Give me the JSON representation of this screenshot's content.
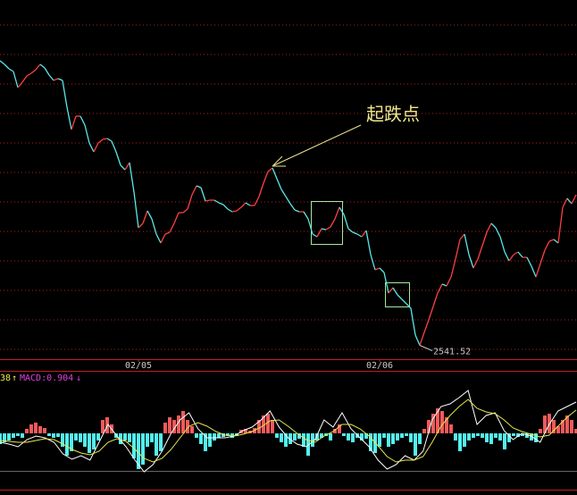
{
  "chart_data": [
    {
      "type": "line",
      "annotation": "起跌点",
      "low_label": "2541.52",
      "up_color": "#ff4040",
      "down_color": "#5ae8e8",
      "ylim": [
        2526,
        2928
      ],
      "xlim": [
        0,
        129
      ],
      "xticks": [
        {
          "value": 31,
          "label": "02/05"
        },
        {
          "value": 85,
          "label": "02/06"
        }
      ],
      "series": [
        {
          "values": [
            2860,
            2856,
            2851,
            2848,
            2830,
            2836,
            2843,
            2846,
            2850,
            2856,
            2852,
            2844,
            2838,
            2840,
            2838,
            2808,
            2783,
            2798,
            2798,
            2788,
            2768,
            2758,
            2768,
            2772,
            2773,
            2770,
            2758,
            2743,
            2738,
            2746,
            2713,
            2673,
            2678,
            2692,
            2683,
            2666,
            2656,
            2666,
            2668,
            2678,
            2690,
            2690,
            2694,
            2710,
            2720,
            2718,
            2703,
            2704,
            2704,
            2701,
            2699,
            2694,
            2691,
            2692,
            2696,
            2701,
            2698,
            2698,
            2708,
            2723,
            2736,
            2740,
            2728,
            2716,
            2708,
            2700,
            2693,
            2691,
            2691,
            2683,
            2666,
            2663,
            2672,
            2671,
            2674,
            2683,
            2696,
            2688,
            2672,
            2668,
            2666,
            2663,
            2670,
            2643,
            2626,
            2628,
            2623,
            2600,
            2606,
            2598,
            2593,
            2588,
            2583,
            2553,
            2541.52,
            2556,
            2570,
            2585,
            2600,
            2610,
            2608,
            2618,
            2638,
            2660,
            2666,
            2643,
            2628,
            2638,
            2653,
            2668,
            2678,
            2673,
            2663,
            2646,
            2636,
            2643,
            2646,
            2640,
            2640,
            2630,
            2618,
            2633,
            2648,
            2658,
            2660,
            2656,
            2696,
            2706,
            2700,
            2710
          ]
        }
      ]
    },
    {
      "type": "macd",
      "prefix": "38",
      "prefix_arrow": "↑",
      "label": "MACD:0.904",
      "label_arrow": "↓",
      "up_color": "#f25a5a",
      "down_color": "#54f0f0",
      "ylim": [
        -69,
        70
      ],
      "bars": [
        -12,
        -10,
        -8,
        -5,
        -3,
        -5,
        5,
        10,
        12,
        8,
        6,
        -3,
        -5,
        -4,
        -15,
        -25,
        -20,
        -8,
        -10,
        -15,
        -22,
        -18,
        -8,
        15,
        18,
        10,
        -5,
        -12,
        -8,
        -10,
        -28,
        -40,
        -35,
        -15,
        -10,
        -25,
        -20,
        12,
        18,
        15,
        20,
        25,
        15,
        8,
        -5,
        -12,
        -20,
        -15,
        -8,
        -5,
        -4,
        -3,
        -5,
        -3,
        4,
        5,
        3,
        6,
        15,
        20,
        22,
        15,
        -5,
        -10,
        -15,
        -12,
        -8,
        -6,
        -15,
        -25,
        -15,
        -8,
        -5,
        -3,
        -8,
        5,
        10,
        -3,
        -8,
        -10,
        -5,
        -8,
        -6,
        -20,
        -22,
        -15,
        -5,
        -15,
        -12,
        -8,
        -5,
        -3,
        -10,
        -25,
        -12,
        5,
        15,
        22,
        28,
        25,
        18,
        10,
        -8,
        -20,
        -15,
        -8,
        -5,
        -3,
        -5,
        -10,
        -12,
        -5,
        -8,
        -18,
        -10,
        -3,
        -4,
        -3,
        -5,
        -8,
        -10,
        5,
        20,
        22,
        15,
        8,
        15,
        20,
        15,
        5
      ],
      "lines": [
        {
          "color": "#ffffff",
          "values": [
            -10,
            -12,
            -15,
            -7,
            -3,
            -5,
            -10,
            -23,
            -29,
            -25,
            -30,
            -10,
            10,
            -3,
            -15,
            -30,
            -43,
            -35,
            -20,
            0,
            15,
            23,
            5,
            -5,
            -5,
            -5,
            -3,
            3,
            7,
            15,
            25,
            7,
            -5,
            -12,
            -15,
            -7,
            15,
            7,
            23,
            5,
            -5,
            -15,
            -30,
            -40,
            -35,
            -25,
            -30,
            -20,
            15,
            30,
            33,
            40,
            48,
            10,
            20,
            23,
            3,
            -7,
            0,
            -3,
            -10,
            10,
            25,
            30,
            35
          ]
        },
        {
          "color": "#e8e84a",
          "values": [
            -8,
            -9,
            -10,
            -10,
            -8,
            -6,
            -7,
            -12,
            -18,
            -22,
            -24,
            -20,
            -10,
            -6,
            -9,
            -18,
            -28,
            -32,
            -28,
            -18,
            -5,
            8,
            12,
            8,
            2,
            -2,
            -3,
            -1,
            2,
            7,
            14,
            15,
            8,
            0,
            -7,
            -10,
            -3,
            2,
            10,
            10,
            5,
            -3,
            -14,
            -26,
            -32,
            -30,
            -30,
            -26,
            -10,
            8,
            20,
            30,
            38,
            28,
            24,
            22,
            15,
            6,
            2,
            -1,
            -4,
            -2,
            8,
            18,
            26
          ]
        }
      ]
    }
  ]
}
